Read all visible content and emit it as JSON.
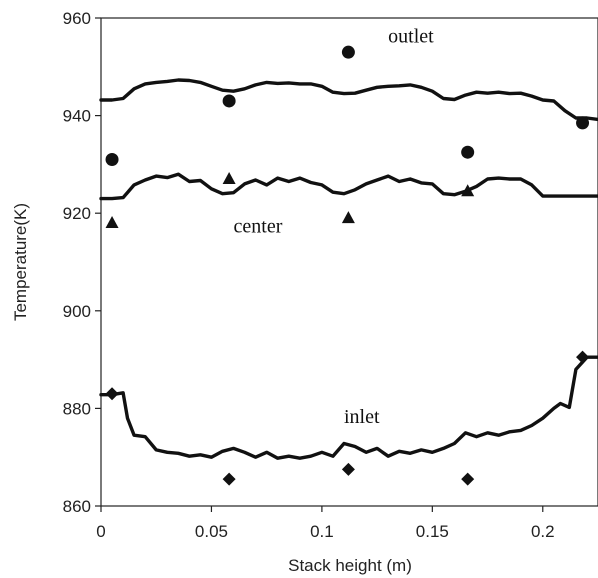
{
  "chart_data": {
    "type": "line",
    "title": "",
    "xlabel": "Stack height (m)",
    "ylabel": "Temperature(K)",
    "xlim": [
      0,
      0.225
    ],
    "ylim": [
      860,
      960
    ],
    "x_ticks": [
      0,
      0.05,
      0.1,
      0.15,
      0.2
    ],
    "x_tick_labels": [
      "0",
      "0.05",
      "0.1",
      "0.15",
      "0.2"
    ],
    "y_ticks": [
      860,
      880,
      900,
      920,
      940,
      960
    ],
    "y_tick_labels": [
      "860",
      "880",
      "900",
      "920",
      "940",
      "960"
    ],
    "grid": false,
    "annotations": [
      {
        "text": "outlet",
        "x": 0.13,
        "y": 955
      },
      {
        "text": "center",
        "x": 0.06,
        "y": 916
      },
      {
        "text": "inlet",
        "x": 0.11,
        "y": 877
      }
    ],
    "series": [
      {
        "name": "outlet",
        "kind": "line",
        "x": [
          0,
          0.005,
          0.01,
          0.015,
          0.02,
          0.025,
          0.03,
          0.035,
          0.04,
          0.045,
          0.05,
          0.055,
          0.06,
          0.065,
          0.07,
          0.075,
          0.08,
          0.085,
          0.09,
          0.095,
          0.1,
          0.105,
          0.11,
          0.115,
          0.12,
          0.125,
          0.13,
          0.135,
          0.14,
          0.145,
          0.15,
          0.155,
          0.16,
          0.165,
          0.17,
          0.175,
          0.18,
          0.185,
          0.19,
          0.195,
          0.2,
          0.205,
          0.21,
          0.215,
          0.22,
          0.225
        ],
        "y": [
          943.2,
          943.2,
          943.5,
          945.5,
          946.5,
          946.8,
          947.0,
          947.3,
          947.2,
          946.8,
          946.0,
          945.2,
          945.0,
          945.5,
          946.3,
          946.8,
          946.6,
          946.7,
          946.5,
          946.5,
          946.0,
          944.8,
          944.5,
          944.6,
          945.2,
          945.8,
          946.0,
          946.1,
          946.3,
          945.8,
          945.0,
          943.5,
          943.3,
          944.2,
          944.8,
          944.6,
          944.8,
          944.5,
          944.6,
          944.0,
          943.2,
          943.0,
          941.0,
          939.5,
          939.5,
          939.2
        ]
      },
      {
        "name": "center",
        "kind": "line",
        "x": [
          0,
          0.005,
          0.01,
          0.015,
          0.02,
          0.025,
          0.03,
          0.035,
          0.04,
          0.045,
          0.05,
          0.055,
          0.06,
          0.065,
          0.07,
          0.075,
          0.08,
          0.085,
          0.09,
          0.095,
          0.1,
          0.105,
          0.11,
          0.115,
          0.12,
          0.125,
          0.13,
          0.135,
          0.14,
          0.145,
          0.15,
          0.155,
          0.16,
          0.165,
          0.17,
          0.175,
          0.18,
          0.185,
          0.19,
          0.195,
          0.2,
          0.205,
          0.21,
          0.215,
          0.22,
          0.225
        ],
        "y": [
          923.0,
          923.0,
          923.2,
          925.8,
          926.8,
          927.6,
          927.3,
          928.0,
          926.5,
          926.7,
          925.0,
          924.0,
          924.2,
          926.0,
          926.8,
          925.8,
          927.2,
          926.5,
          927.2,
          926.3,
          925.8,
          924.3,
          924.0,
          924.8,
          926.0,
          926.8,
          927.6,
          926.5,
          927.0,
          926.2,
          926.0,
          924.0,
          923.8,
          924.5,
          925.5,
          927.0,
          927.2,
          927.0,
          927.0,
          925.8,
          923.5,
          923.5,
          923.5,
          923.5,
          923.5,
          923.5
        ]
      },
      {
        "name": "inlet",
        "kind": "line",
        "x": [
          0,
          0.005,
          0.01,
          0.012,
          0.015,
          0.02,
          0.025,
          0.03,
          0.035,
          0.04,
          0.045,
          0.05,
          0.055,
          0.06,
          0.065,
          0.07,
          0.075,
          0.08,
          0.085,
          0.09,
          0.095,
          0.1,
          0.105,
          0.11,
          0.115,
          0.12,
          0.125,
          0.13,
          0.135,
          0.14,
          0.145,
          0.15,
          0.155,
          0.16,
          0.165,
          0.17,
          0.175,
          0.18,
          0.185,
          0.19,
          0.195,
          0.2,
          0.205,
          0.208,
          0.212,
          0.215,
          0.22,
          0.225
        ],
        "y": [
          882.8,
          882.8,
          883.2,
          878.0,
          874.5,
          874.2,
          871.5,
          871.0,
          870.8,
          870.2,
          870.5,
          870.0,
          871.2,
          871.8,
          871.0,
          870.0,
          871.0,
          869.8,
          870.2,
          869.8,
          870.2,
          871.0,
          870.2,
          872.8,
          872.2,
          871.0,
          871.8,
          870.2,
          871.2,
          870.8,
          871.5,
          871.0,
          871.8,
          872.8,
          875.0,
          874.2,
          875.0,
          874.5,
          875.2,
          875.5,
          876.5,
          878.0,
          880.0,
          881.0,
          880.2,
          888.0,
          890.5,
          890.5
        ]
      },
      {
        "name": "outlet",
        "kind": "scatter",
        "marker": "circle",
        "x": [
          0.005,
          0.058,
          0.112,
          0.166,
          0.218
        ],
        "y": [
          931,
          943,
          953,
          932.5,
          938.5
        ]
      },
      {
        "name": "center",
        "kind": "scatter",
        "marker": "triangle",
        "x": [
          0.005,
          0.058,
          0.112,
          0.166
        ],
        "y": [
          918,
          927,
          919,
          924.5
        ]
      },
      {
        "name": "inlet",
        "kind": "scatter",
        "marker": "diamond",
        "x": [
          0.005,
          0.058,
          0.112,
          0.166,
          0.218
        ],
        "y": [
          883,
          865.5,
          867.5,
          865.5,
          890.5
        ]
      }
    ]
  }
}
